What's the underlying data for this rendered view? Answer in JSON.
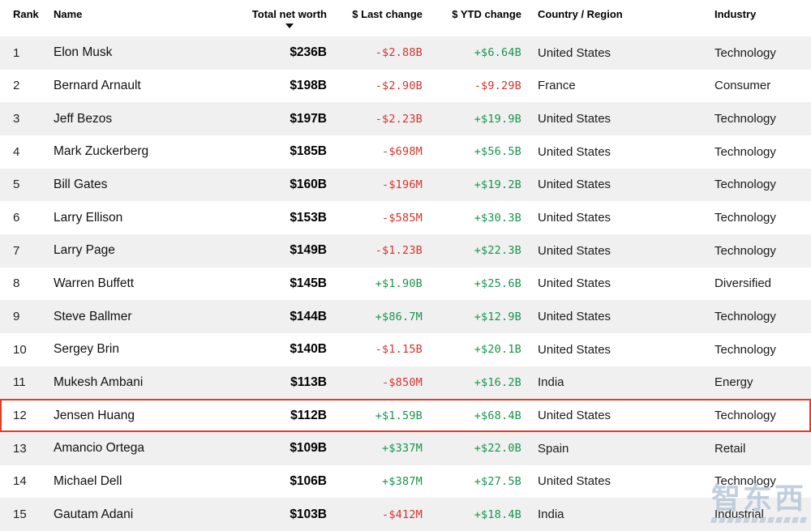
{
  "table": {
    "columns": [
      {
        "key": "rank",
        "label": "Rank"
      },
      {
        "key": "name",
        "label": "Name"
      },
      {
        "key": "net_worth",
        "label": "Total net worth",
        "sorted": "descending"
      },
      {
        "key": "last_change",
        "label": "$ Last change"
      },
      {
        "key": "ytd_change",
        "label": "$ YTD change"
      },
      {
        "key": "country",
        "label": "Country / Region"
      },
      {
        "key": "industry",
        "label": "Industry"
      }
    ],
    "rows": [
      {
        "rank": "1",
        "name": "Elon Musk",
        "net_worth": "$236B",
        "last_change": "-$2.88B",
        "ytd_change": "+$6.64B",
        "country": "United States",
        "industry": "Technology",
        "highlighted": false
      },
      {
        "rank": "2",
        "name": "Bernard Arnault",
        "net_worth": "$198B",
        "last_change": "-$2.90B",
        "ytd_change": "-$9.29B",
        "country": "France",
        "industry": "Consumer",
        "highlighted": false
      },
      {
        "rank": "3",
        "name": "Jeff Bezos",
        "net_worth": "$197B",
        "last_change": "-$2.23B",
        "ytd_change": "+$19.9B",
        "country": "United States",
        "industry": "Technology",
        "highlighted": false
      },
      {
        "rank": "4",
        "name": "Mark Zuckerberg",
        "net_worth": "$185B",
        "last_change": "-$698M",
        "ytd_change": "+$56.5B",
        "country": "United States",
        "industry": "Technology",
        "highlighted": false
      },
      {
        "rank": "5",
        "name": "Bill Gates",
        "net_worth": "$160B",
        "last_change": "-$196M",
        "ytd_change": "+$19.2B",
        "country": "United States",
        "industry": "Technology",
        "highlighted": false
      },
      {
        "rank": "6",
        "name": "Larry Ellison",
        "net_worth": "$153B",
        "last_change": "-$585M",
        "ytd_change": "+$30.3B",
        "country": "United States",
        "industry": "Technology",
        "highlighted": false
      },
      {
        "rank": "7",
        "name": "Larry Page",
        "net_worth": "$149B",
        "last_change": "-$1.23B",
        "ytd_change": "+$22.3B",
        "country": "United States",
        "industry": "Technology",
        "highlighted": false
      },
      {
        "rank": "8",
        "name": "Warren Buffett",
        "net_worth": "$145B",
        "last_change": "+$1.90B",
        "ytd_change": "+$25.6B",
        "country": "United States",
        "industry": "Diversified",
        "highlighted": false
      },
      {
        "rank": "9",
        "name": "Steve Ballmer",
        "net_worth": "$144B",
        "last_change": "+$86.7M",
        "ytd_change": "+$12.9B",
        "country": "United States",
        "industry": "Technology",
        "highlighted": false
      },
      {
        "rank": "10",
        "name": "Sergey Brin",
        "net_worth": "$140B",
        "last_change": "-$1.15B",
        "ytd_change": "+$20.1B",
        "country": "United States",
        "industry": "Technology",
        "highlighted": false
      },
      {
        "rank": "11",
        "name": "Mukesh Ambani",
        "net_worth": "$113B",
        "last_change": "-$850M",
        "ytd_change": "+$16.2B",
        "country": "India",
        "industry": "Energy",
        "highlighted": false
      },
      {
        "rank": "12",
        "name": "Jensen Huang",
        "net_worth": "$112B",
        "last_change": "+$1.59B",
        "ytd_change": "+$68.4B",
        "country": "United States",
        "industry": "Technology",
        "highlighted": true
      },
      {
        "rank": "13",
        "name": "Amancio Ortega",
        "net_worth": "$109B",
        "last_change": "+$337M",
        "ytd_change": "+$22.0B",
        "country": "Spain",
        "industry": "Retail",
        "highlighted": false
      },
      {
        "rank": "14",
        "name": "Michael Dell",
        "net_worth": "$106B",
        "last_change": "+$387M",
        "ytd_change": "+$27.5B",
        "country": "United States",
        "industry": "Technology",
        "highlighted": false
      },
      {
        "rank": "15",
        "name": "Gautam Adani",
        "net_worth": "$103B",
        "last_change": "-$412M",
        "ytd_change": "+$18.4B",
        "country": "India",
        "industry": "Industrial",
        "highlighted": false
      }
    ]
  },
  "colors": {
    "positive": "#17944d",
    "negative": "#d5332b",
    "row_alt": "#f0f0f0",
    "highlight_border": "#e83a23",
    "watermark": "#b4c4d8"
  },
  "watermark": {
    "text": "智东西"
  }
}
